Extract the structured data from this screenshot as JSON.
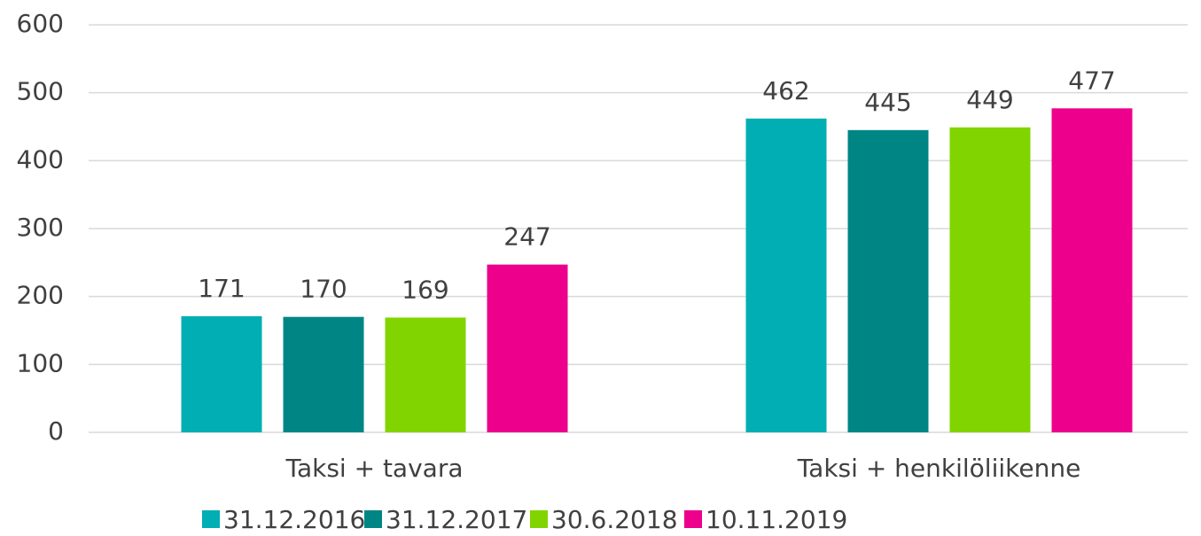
{
  "chart_data": {
    "type": "bar",
    "categories": [
      "Taksi + tavara",
      "Taksi + henkilöliikenne"
    ],
    "series": [
      {
        "name": "31.12.2016",
        "color": "#00aeb3",
        "values": [
          171,
          462
        ]
      },
      {
        "name": "31.12.2017",
        "color": "#008585",
        "values": [
          170,
          445
        ]
      },
      {
        "name": "30.6.2018",
        "color": "#82d400",
        "values": [
          169,
          449
        ]
      },
      {
        "name": "10.11.2019",
        "color": "#ec008c",
        "values": [
          247,
          477
        ]
      }
    ],
    "ylim": [
      0,
      600
    ],
    "yticks": [
      0,
      100,
      200,
      300,
      400,
      500,
      600
    ],
    "grid": true,
    "legend": "bottom"
  }
}
